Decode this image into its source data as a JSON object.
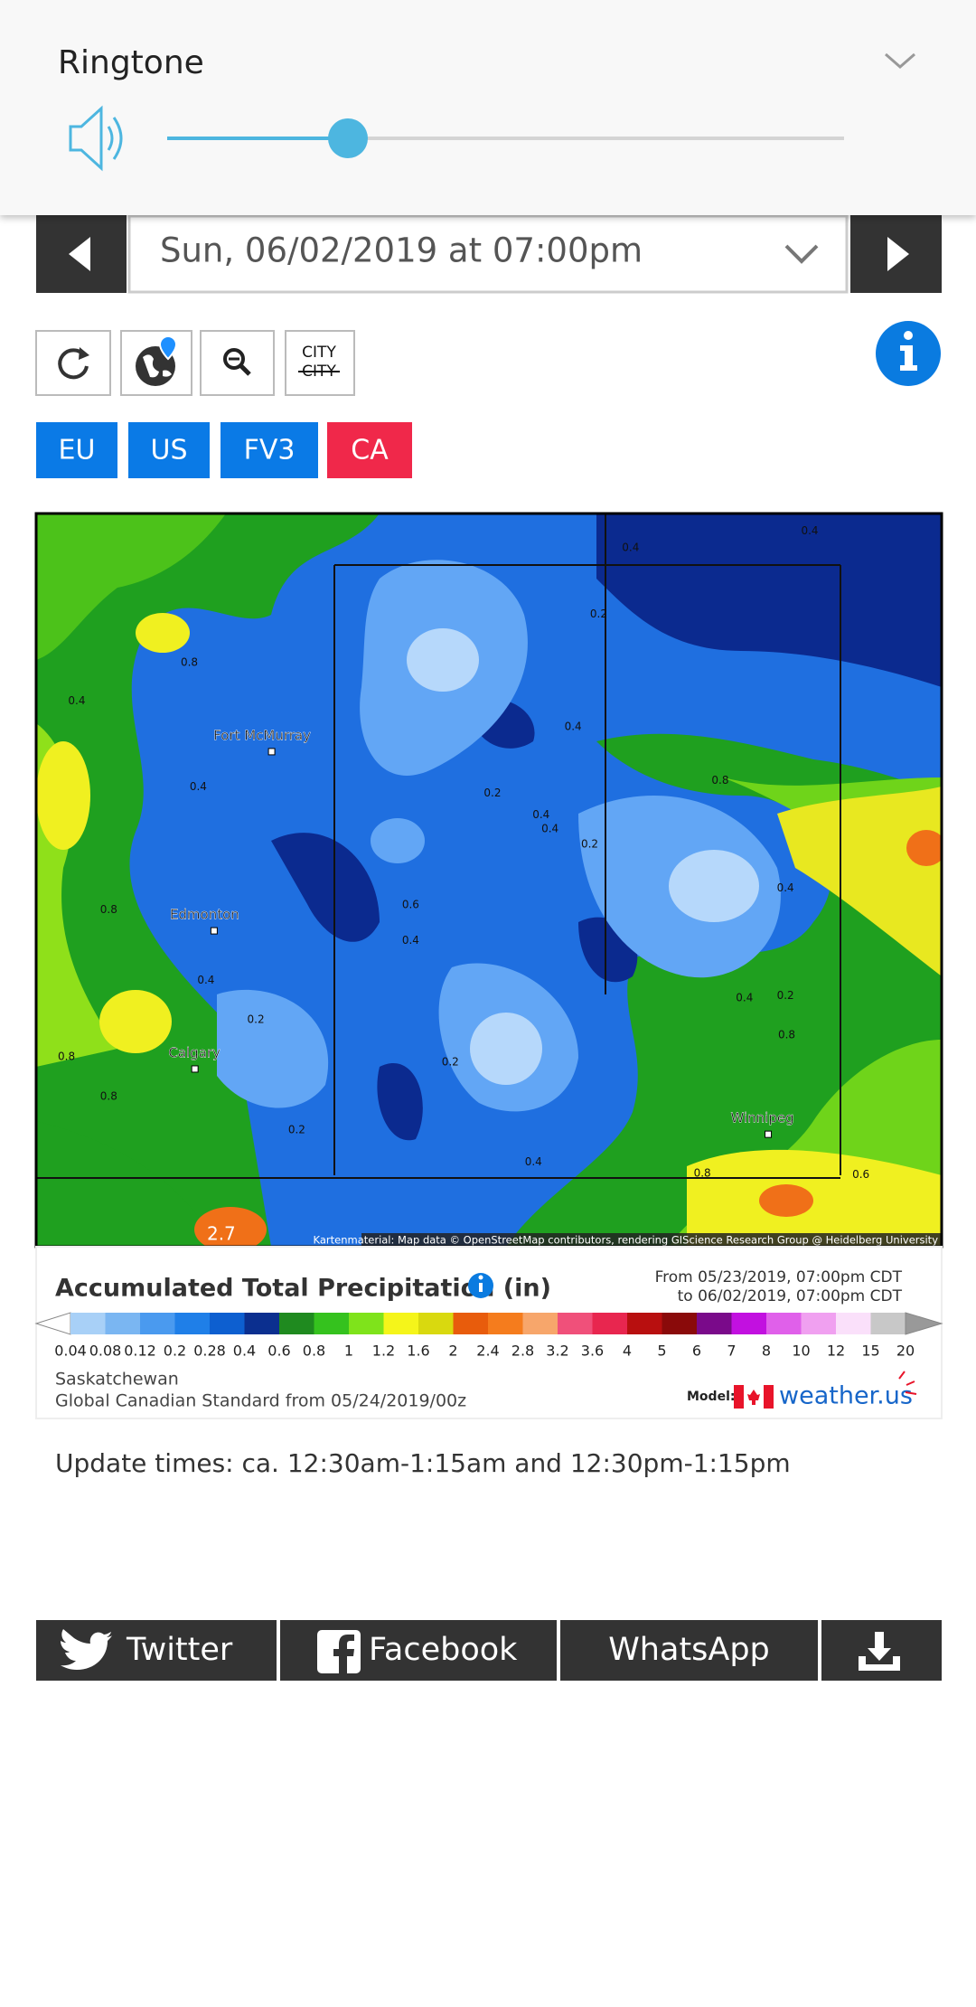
{
  "volume_panel": {
    "title": "Ringtone"
  },
  "date_selector": {
    "value": "Sun, 06/02/2019 at 07:00pm"
  },
  "toolbar": {
    "city_toggle": [
      "CITY",
      "CITY"
    ]
  },
  "models": [
    "EU",
    "US",
    "FV3",
    "CA"
  ],
  "map": {
    "places": [
      "Fort McMurray",
      "Edmonton",
      "Calgary",
      "Winnipeg"
    ],
    "contour_labels": [
      "0.4",
      "0.4",
      "0.2",
      "0.8",
      "0.4",
      "0.4",
      "0.8",
      "0.4",
      "0.2",
      "0.4",
      "0.4",
      "0.2",
      "0.4",
      "0.8",
      "0.6",
      "0.4",
      "0.4",
      "0.4",
      "0.2",
      "0.2",
      "0.8",
      "0.8",
      "0.2",
      "0.8",
      "0.2",
      "0.4",
      "0.8",
      "0.6",
      "2.7"
    ],
    "attribution": "Kartenmaterial: Map data © OpenStreetMap contributors, rendering GIScience Research Group @ Heidelberg University"
  },
  "legend": {
    "title": "Accumulated Total Precipitation (in)",
    "from": "From 05/23/2019, 07:00pm CDT",
    "to": "to 06/02/2019, 07:00pm CDT",
    "scale": [
      "0.04",
      "0.08",
      "0.12",
      "0.2",
      "0.28",
      "0.4",
      "0.6",
      "0.8",
      "1",
      "1.2",
      "1.6",
      "2",
      "2.4",
      "2.8",
      "3.2",
      "3.6",
      "4",
      "5",
      "6",
      "7",
      "8",
      "10",
      "12",
      "15",
      "20"
    ],
    "region": "Saskatchewan",
    "run": "Global Canadian Standard from 05/24/2019/00z",
    "model_label": "Model:",
    "brand": "weather.us"
  },
  "update_times": "Update times: ca. 12:30am-1:15am and 12:30pm-1:15pm",
  "share": [
    "Twitter",
    "Facebook",
    "WhatsApp"
  ]
}
